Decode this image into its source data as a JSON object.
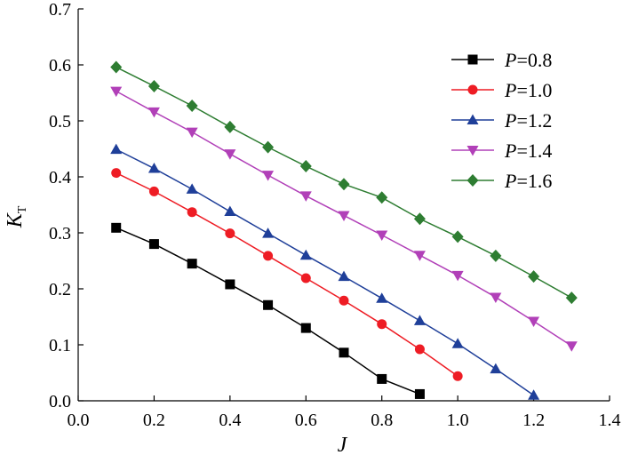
{
  "chart_data": {
    "type": "line",
    "title": "",
    "xlabel": "J",
    "ylabel": "K",
    "ylabel_subscript": "T",
    "xlim": [
      0.0,
      1.4
    ],
    "ylim": [
      0.0,
      0.7
    ],
    "xticks": [
      "0.0",
      "0.2",
      "0.4",
      "0.6",
      "0.8",
      "1.0",
      "1.2",
      "1.4"
    ],
    "yticks": [
      "0.0",
      "0.1",
      "0.2",
      "0.3",
      "0.4",
      "0.5",
      "0.6",
      "0.7"
    ],
    "grid": false,
    "legend_position": "top-right",
    "series": [
      {
        "name": "P=0.8",
        "legend_var": "P",
        "legend_val": "=0.8",
        "color": "#000000",
        "marker": "square",
        "x": [
          0.1,
          0.2,
          0.3,
          0.4,
          0.5,
          0.6,
          0.7,
          0.8,
          0.9
        ],
        "y": [
          0.309,
          0.28,
          0.245,
          0.208,
          0.171,
          0.13,
          0.086,
          0.039,
          0.012
        ]
      },
      {
        "name": "P=1.0",
        "legend_var": "P",
        "legend_val": "=1.0",
        "color": "#ee1c24",
        "marker": "circle",
        "x": [
          0.1,
          0.2,
          0.3,
          0.4,
          0.5,
          0.6,
          0.7,
          0.8,
          0.9,
          1.0
        ],
        "y": [
          0.407,
          0.374,
          0.337,
          0.299,
          0.259,
          0.219,
          0.179,
          0.137,
          0.092,
          0.044
        ]
      },
      {
        "name": "P=1.2",
        "legend_var": "P",
        "legend_val": "=1.2",
        "color": "#1f3f99",
        "marker": "triangle-up",
        "x": [
          0.1,
          0.2,
          0.3,
          0.4,
          0.5,
          0.6,
          0.7,
          0.8,
          0.9,
          1.0,
          1.1,
          1.2
        ],
        "y": [
          0.449,
          0.415,
          0.378,
          0.338,
          0.299,
          0.26,
          0.222,
          0.183,
          0.143,
          0.102,
          0.057,
          0.01
        ]
      },
      {
        "name": "P=1.4",
        "legend_var": "P",
        "legend_val": "=1.4",
        "color": "#b140b8",
        "marker": "triangle-down",
        "x": [
          0.1,
          0.2,
          0.3,
          0.4,
          0.5,
          0.6,
          0.7,
          0.8,
          0.9,
          1.0,
          1.1,
          1.2,
          1.3
        ],
        "y": [
          0.553,
          0.516,
          0.48,
          0.441,
          0.403,
          0.366,
          0.331,
          0.296,
          0.26,
          0.224,
          0.185,
          0.142,
          0.098
        ]
      },
      {
        "name": "P=1.6",
        "legend_var": "P",
        "legend_val": "=1.6",
        "color": "#2e7d32",
        "marker": "diamond",
        "x": [
          0.1,
          0.2,
          0.3,
          0.4,
          0.5,
          0.6,
          0.7,
          0.8,
          0.9,
          1.0,
          1.1,
          1.2,
          1.3
        ],
        "y": [
          0.596,
          0.562,
          0.527,
          0.489,
          0.453,
          0.419,
          0.387,
          0.363,
          0.325,
          0.293,
          0.259,
          0.222,
          0.184
        ]
      }
    ]
  }
}
